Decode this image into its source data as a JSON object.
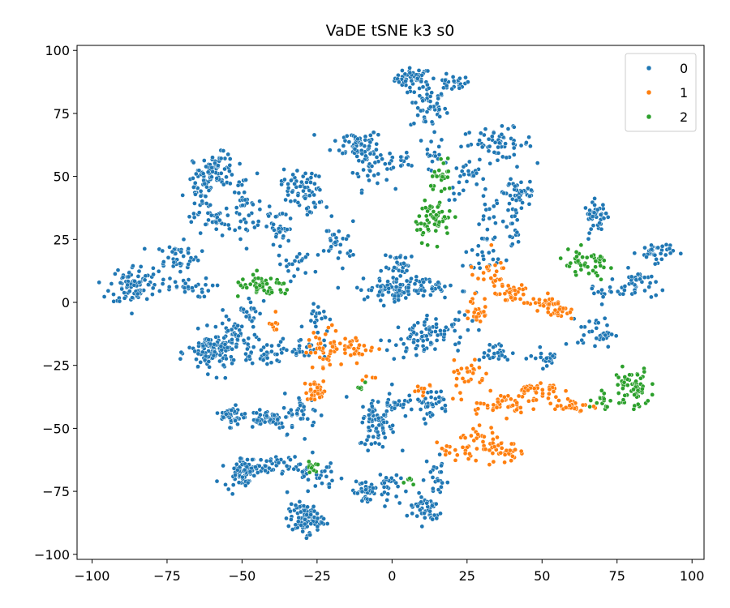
{
  "chart_data": {
    "type": "scatter",
    "title": "VaDE tSNE k3 s0",
    "xlabel": "",
    "ylabel": "",
    "xlim": [
      -105,
      104
    ],
    "ylim": [
      -102,
      102
    ],
    "xticks": [
      -100,
      -75,
      -50,
      -25,
      0,
      25,
      50,
      75,
      100
    ],
    "yticks": [
      -100,
      -75,
      -50,
      -25,
      0,
      25,
      50,
      75,
      100
    ],
    "xtick_labels": [
      "−100",
      "−75",
      "−50",
      "−25",
      "0",
      "25",
      "50",
      "75",
      "100"
    ],
    "ytick_labels": [
      "−100",
      "−75",
      "−50",
      "−25",
      "0",
      "25",
      "50",
      "75",
      "100"
    ],
    "grid": false,
    "legend_position": "top-right",
    "series": [
      {
        "name": "0",
        "color": "#1f77b4",
        "clusters": [
          {
            "cx": 7,
            "cy": 89,
            "sx": 3,
            "sy": 2,
            "n": 50
          },
          {
            "cx": 20,
            "cy": 87,
            "sx": 3,
            "sy": 1.5,
            "n": 25
          },
          {
            "cx": 12,
            "cy": 78,
            "sx": 3,
            "sy": 5,
            "n": 50
          },
          {
            "cx": -12,
            "cy": 63,
            "sx": 4,
            "sy": 3,
            "n": 55
          },
          {
            "cx": -7,
            "cy": 55,
            "sx": 3,
            "sy": 5,
            "n": 40
          },
          {
            "cx": 4,
            "cy": 56,
            "sx": 5,
            "sy": 2,
            "n": 20
          },
          {
            "cx": 14,
            "cy": 63,
            "sx": 1.5,
            "sy": 5,
            "n": 15
          },
          {
            "cx": 35,
            "cy": 63,
            "sx": 6,
            "sy": 3,
            "n": 60
          },
          {
            "cx": 25,
            "cy": 48,
            "sx": 3,
            "sy": 4,
            "n": 25
          },
          {
            "cx": 43,
            "cy": 44,
            "sx": 3,
            "sy": 3,
            "n": 40
          },
          {
            "cx": 40,
            "cy": 30,
            "sx": 2,
            "sy": 9,
            "n": 30
          },
          {
            "cx": 32,
            "cy": 28,
            "sx": 2,
            "sy": 8,
            "n": 25
          },
          {
            "cx": -58,
            "cy": 53,
            "sx": 3,
            "sy": 3,
            "n": 70
          },
          {
            "cx": -64,
            "cy": 42,
            "sx": 2.5,
            "sy": 6,
            "n": 50
          },
          {
            "cx": -50,
            "cy": 37,
            "sx": 2.5,
            "sy": 7,
            "n": 40
          },
          {
            "cx": -58,
            "cy": 32,
            "sx": 2,
            "sy": 3,
            "n": 25
          },
          {
            "cx": -86,
            "cy": 7,
            "sx": 4,
            "sy": 4,
            "n": 90
          },
          {
            "cx": -72,
            "cy": 18,
            "sx": 4,
            "sy": 3,
            "n": 45
          },
          {
            "cx": -70,
            "cy": 6,
            "sx": 5,
            "sy": 2,
            "n": 30
          },
          {
            "cx": -31,
            "cy": 47,
            "sx": 3,
            "sy": 3,
            "n": 45
          },
          {
            "cx": -38,
            "cy": 30,
            "sx": 3,
            "sy": 5,
            "n": 40
          },
          {
            "cx": -27,
            "cy": 38,
            "sx": 3,
            "sy": 4,
            "n": 25
          },
          {
            "cx": -18,
            "cy": 24,
            "sx": 3,
            "sy": 4,
            "n": 30
          },
          {
            "cx": -32,
            "cy": 15,
            "sx": 3,
            "sy": 3,
            "n": 20
          },
          {
            "cx": 0,
            "cy": 5,
            "sx": 6,
            "sy": 2,
            "n": 80
          },
          {
            "cx": 3,
            "cy": 14,
            "sx": 3,
            "sy": 3,
            "n": 35
          },
          {
            "cx": 15,
            "cy": 6,
            "sx": 5,
            "sy": 2,
            "n": 30
          },
          {
            "cx": 30,
            "cy": 18,
            "sx": 3,
            "sy": 2,
            "n": 15
          },
          {
            "cx": 68,
            "cy": 34,
            "sx": 2,
            "sy": 3,
            "n": 40
          },
          {
            "cx": 88,
            "cy": 20,
            "sx": 3,
            "sy": 2,
            "n": 35
          },
          {
            "cx": 82,
            "cy": 7,
            "sx": 3,
            "sy": 3,
            "n": 35
          },
          {
            "cx": 70,
            "cy": 4,
            "sx": 3,
            "sy": 2,
            "n": 15
          },
          {
            "cx": -60,
            "cy": -20,
            "sx": 4,
            "sy": 4,
            "n": 110
          },
          {
            "cx": -52,
            "cy": -13,
            "sx": 3,
            "sy": 4,
            "n": 40
          },
          {
            "cx": -42,
            "cy": -20,
            "sx": 5,
            "sy": 2,
            "n": 40
          },
          {
            "cx": -30,
            "cy": -18,
            "sx": 4,
            "sy": 2,
            "n": 25
          },
          {
            "cx": -47,
            "cy": -3,
            "sx": 2,
            "sy": 3,
            "n": 20
          },
          {
            "cx": -25,
            "cy": -5,
            "sx": 2,
            "sy": 3,
            "n": 20
          },
          {
            "cx": 8,
            "cy": -15,
            "sx": 5,
            "sy": 4,
            "n": 70
          },
          {
            "cx": 22,
            "cy": -10,
            "sx": 4,
            "sy": 3,
            "n": 20
          },
          {
            "cx": 34,
            "cy": -20,
            "sx": 3,
            "sy": 2,
            "n": 25
          },
          {
            "cx": 52,
            "cy": -22,
            "sx": 3,
            "sy": 2,
            "n": 20
          },
          {
            "cx": 68,
            "cy": -12,
            "sx": 3,
            "sy": 3,
            "n": 35
          },
          {
            "cx": -53,
            "cy": -45,
            "sx": 2,
            "sy": 2,
            "n": 40
          },
          {
            "cx": -42,
            "cy": -46,
            "sx": 4,
            "sy": 2,
            "n": 50
          },
          {
            "cx": -30,
            "cy": -44,
            "sx": 3,
            "sy": 4,
            "n": 35
          },
          {
            "cx": -5,
            "cy": -48,
            "sx": 3,
            "sy": 5,
            "n": 70
          },
          {
            "cx": 1,
            "cy": -40,
            "sx": 2,
            "sy": 3,
            "n": 25
          },
          {
            "cx": 13,
            "cy": -40,
            "sx": 3,
            "sy": 3,
            "n": 40
          },
          {
            "cx": -50,
            "cy": -67,
            "sx": 3,
            "sy": 3,
            "n": 70
          },
          {
            "cx": -36,
            "cy": -65,
            "sx": 6,
            "sy": 2,
            "n": 50
          },
          {
            "cx": -22,
            "cy": -70,
            "sx": 3,
            "sy": 3,
            "n": 20
          },
          {
            "cx": -29,
            "cy": -86,
            "sx": 3,
            "sy": 3,
            "n": 90
          },
          {
            "cx": -9,
            "cy": -75,
            "sx": 2,
            "sy": 3,
            "n": 35
          },
          {
            "cx": -2,
            "cy": -72,
            "sx": 2,
            "sy": 3,
            "n": 25
          },
          {
            "cx": 11,
            "cy": -82,
            "sx": 3,
            "sy": 3,
            "n": 45
          },
          {
            "cx": 15,
            "cy": -70,
            "sx": 2,
            "sy": 5,
            "n": 25
          }
        ]
      },
      {
        "name": "1",
        "color": "#ff7f0e",
        "clusters": [
          {
            "cx": 32,
            "cy": 12,
            "sx": 3,
            "sy": 3,
            "n": 25
          },
          {
            "cx": 40,
            "cy": 3,
            "sx": 3,
            "sy": 2,
            "n": 30
          },
          {
            "cx": 50,
            "cy": 0,
            "sx": 3,
            "sy": 1.5,
            "n": 20
          },
          {
            "cx": 55,
            "cy": -3,
            "sx": 2,
            "sy": 2,
            "n": 25
          },
          {
            "cx": 28,
            "cy": -3,
            "sx": 2,
            "sy": 3,
            "n": 25
          },
          {
            "cx": -22,
            "cy": -18,
            "sx": 3,
            "sy": 4,
            "n": 45
          },
          {
            "cx": -12,
            "cy": -18,
            "sx": 3,
            "sy": 2,
            "n": 30
          },
          {
            "cx": -38,
            "cy": -8,
            "sx": 1.5,
            "sy": 2,
            "n": 8
          },
          {
            "cx": -25,
            "cy": -35,
            "sx": 2,
            "sy": 2,
            "n": 30
          },
          {
            "cx": 25,
            "cy": -28,
            "sx": 3,
            "sy": 4,
            "n": 25
          },
          {
            "cx": 35,
            "cy": -40,
            "sx": 5,
            "sy": 2,
            "n": 45
          },
          {
            "cx": 48,
            "cy": -35,
            "sx": 4,
            "sy": 2,
            "n": 35
          },
          {
            "cx": 60,
            "cy": -41,
            "sx": 3,
            "sy": 1.5,
            "n": 30
          },
          {
            "cx": 30,
            "cy": -55,
            "sx": 4,
            "sy": 3,
            "n": 35
          },
          {
            "cx": 38,
            "cy": -60,
            "sx": 3,
            "sy": 2,
            "n": 25
          },
          {
            "cx": 21,
            "cy": -60,
            "sx": 3,
            "sy": 2,
            "n": 15
          },
          {
            "cx": 10,
            "cy": -35,
            "sx": 2,
            "sy": 2,
            "n": 10
          },
          {
            "cx": -7,
            "cy": -30,
            "sx": 1,
            "sy": 1,
            "n": 4
          }
        ]
      },
      {
        "name": "2",
        "color": "#2ca02c",
        "clusters": [
          {
            "cx": 14,
            "cy": 33,
            "sx": 3,
            "sy": 4,
            "n": 60
          },
          {
            "cx": 17,
            "cy": 49,
            "sx": 2,
            "sy": 3,
            "n": 25
          },
          {
            "cx": -43,
            "cy": 6,
            "sx": 5,
            "sy": 2,
            "n": 50
          },
          {
            "cx": 65,
            "cy": 15,
            "sx": 5,
            "sy": 3,
            "n": 45
          },
          {
            "cx": 80,
            "cy": -34,
            "sx": 3,
            "sy": 4,
            "n": 60
          },
          {
            "cx": 70,
            "cy": -38,
            "sx": 1.5,
            "sy": 3,
            "n": 15
          },
          {
            "cx": -27,
            "cy": -64,
            "sx": 2,
            "sy": 2,
            "n": 12
          },
          {
            "cx": -10,
            "cy": -33,
            "sx": 1,
            "sy": 1,
            "n": 5
          },
          {
            "cx": 6,
            "cy": -70,
            "sx": 1.5,
            "sy": 1,
            "n": 6
          }
        ]
      }
    ]
  }
}
